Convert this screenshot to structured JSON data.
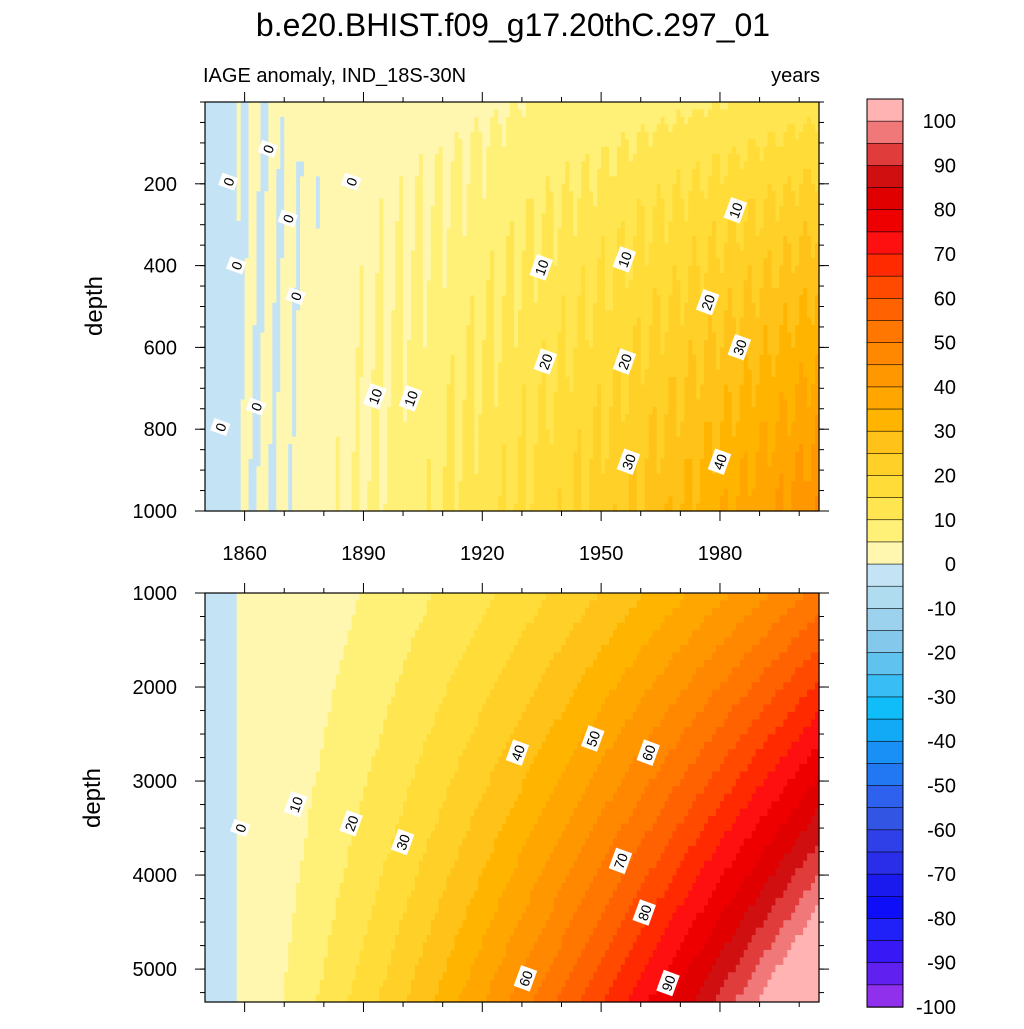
{
  "title": "b.e20.BHIST.f09_g17.20thC.297_01",
  "subtitle_left": "IAGE anomaly, IND_18S-30N",
  "subtitle_right": "years",
  "chart_data": [
    {
      "type": "contour",
      "panel": "upper",
      "ylabel": "depth",
      "xlabel": "",
      "xlim": [
        1850,
        2005
      ],
      "ylim": [
        1000,
        0
      ],
      "x_ticks": [
        1860,
        1890,
        1920,
        1950,
        1980
      ],
      "y_ticks": [
        200,
        400,
        600,
        800,
        1000
      ],
      "contour_labels": [
        {
          "text": "0",
          "x": 1866,
          "y": 115
        },
        {
          "text": "0",
          "x": 1856,
          "y": 195
        },
        {
          "text": "0",
          "x": 1887,
          "y": 195
        },
        {
          "text": "0",
          "x": 1871,
          "y": 285
        },
        {
          "text": "0",
          "x": 1858,
          "y": 400
        },
        {
          "text": "0",
          "x": 1873,
          "y": 475
        },
        {
          "text": "0",
          "x": 1854,
          "y": 795
        },
        {
          "text": "0",
          "x": 1863,
          "y": 745
        },
        {
          "text": "10",
          "x": 1935,
          "y": 405
        },
        {
          "text": "10",
          "x": 1956,
          "y": 385
        },
        {
          "text": "10",
          "x": 1984,
          "y": 265
        },
        {
          "text": "10",
          "x": 1893,
          "y": 720
        },
        {
          "text": "10",
          "x": 1902,
          "y": 725
        },
        {
          "text": "20",
          "x": 1936,
          "y": 635
        },
        {
          "text": "20",
          "x": 1956,
          "y": 635
        },
        {
          "text": "20",
          "x": 1977,
          "y": 490
        },
        {
          "text": "30",
          "x": 1957,
          "y": 880
        },
        {
          "text": "30",
          "x": 1985,
          "y": 600
        },
        {
          "text": "40",
          "x": 1980,
          "y": 880
        }
      ]
    },
    {
      "type": "contour",
      "panel": "lower",
      "ylabel": "depth",
      "xlabel": "",
      "xlim": [
        1850,
        2005
      ],
      "ylim": [
        5350,
        1000
      ],
      "y_ticks": [
        1000,
        2000,
        3000,
        4000,
        5000
      ],
      "contour_labels": [
        {
          "text": "0",
          "x": 1859,
          "y": 3500
        },
        {
          "text": "10",
          "x": 1873,
          "y": 3250
        },
        {
          "text": "20",
          "x": 1887,
          "y": 3450
        },
        {
          "text": "30",
          "x": 1900,
          "y": 3650
        },
        {
          "text": "40",
          "x": 1929,
          "y": 2700
        },
        {
          "text": "50",
          "x": 1948,
          "y": 2550
        },
        {
          "text": "60",
          "x": 1962,
          "y": 2700
        },
        {
          "text": "70",
          "x": 1955,
          "y": 3850
        },
        {
          "text": "80",
          "x": 1961,
          "y": 4400
        },
        {
          "text": "60",
          "x": 1931,
          "y": 5100
        },
        {
          "text": "90",
          "x": 1967,
          "y": 5150
        }
      ]
    }
  ],
  "colorbar": {
    "labels": [
      "100",
      "90",
      "80",
      "70",
      "60",
      "50",
      "40",
      "30",
      "20",
      "10",
      "0",
      "-10",
      "-20",
      "-30",
      "-40",
      "-50",
      "-60",
      "-70",
      "-80",
      "-90",
      "-100"
    ],
    "colors": [
      "#ffb3b3",
      "#f07878",
      "#e03c3c",
      "#d01010",
      "#e00000",
      "#ee0000",
      "#ff1010",
      "#ff2a00",
      "#ff4a00",
      "#ff6200",
      "#ff7600",
      "#ff8800",
      "#ff9800",
      "#ffa600",
      "#ffb400",
      "#ffc218",
      "#ffd028",
      "#ffdc38",
      "#ffe650",
      "#fff078",
      "#fff7b0",
      "#c4e4f6",
      "#b0dcf0",
      "#9cd2ee",
      "#84c8ec",
      "#60c2ef",
      "#38bdf4",
      "#10bdf8",
      "#12aaf7",
      "#1890f5",
      "#2277f2",
      "#2d61ee",
      "#3355e4",
      "#3040e8",
      "#2a2ee8",
      "#1a1aef",
      "#0e0ef8",
      "#2020f8",
      "#3818f4",
      "#6020f0",
      "#9030ec"
    ]
  },
  "level_colors": [
    "#c4e4f6",
    "#fff7b0",
    "#fff078",
    "#ffe650",
    "#ffdc38",
    "#ffd028",
    "#ffc218",
    "#ffb400",
    "#ffa600",
    "#ff9800",
    "#ff8800",
    "#ff7600",
    "#ff6200",
    "#ff4a00",
    "#ff2a00",
    "#ff1010",
    "#ee0000",
    "#e00000",
    "#d01010",
    "#e03c3c",
    "#f07878",
    "#ffb3b3"
  ]
}
